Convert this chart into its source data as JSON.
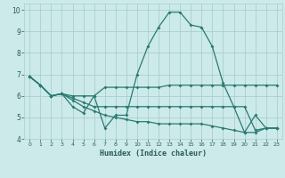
{
  "xlabel": "Humidex (Indice chaleur)",
  "background_color": "#cceaea",
  "grid_color": "#aacece",
  "line_color": "#2a7a70",
  "xlim": [
    -0.5,
    23.5
  ],
  "ylim": [
    4,
    10.3
  ],
  "yticks": [
    4,
    5,
    6,
    7,
    8,
    9,
    10
  ],
  "xticks": [
    0,
    1,
    2,
    3,
    4,
    5,
    6,
    7,
    8,
    9,
    10,
    11,
    12,
    13,
    14,
    15,
    16,
    17,
    18,
    19,
    20,
    21,
    22,
    23
  ],
  "line1_x": [
    0,
    1,
    2,
    3,
    4,
    5,
    6,
    7,
    8,
    9,
    10,
    11,
    12,
    13,
    14,
    15,
    16,
    17,
    18,
    19,
    20,
    21,
    22,
    23
  ],
  "line1_y": [
    6.9,
    6.5,
    6.0,
    6.1,
    5.5,
    5.2,
    6.0,
    4.5,
    5.1,
    5.1,
    7.0,
    8.3,
    9.2,
    9.9,
    9.9,
    9.3,
    9.2,
    8.3,
    6.6,
    5.5,
    4.3,
    5.1,
    4.5,
    4.5
  ],
  "line2_x": [
    0,
    1,
    2,
    3,
    4,
    5,
    6,
    7,
    8,
    9,
    10,
    11,
    12,
    13,
    14,
    15,
    16,
    17,
    18,
    19,
    20,
    21,
    22,
    23
  ],
  "line2_y": [
    6.9,
    6.5,
    6.0,
    6.1,
    6.0,
    6.0,
    6.0,
    6.4,
    6.4,
    6.4,
    6.4,
    6.4,
    6.4,
    6.5,
    6.5,
    6.5,
    6.5,
    6.5,
    6.5,
    6.5,
    6.5,
    6.5,
    6.5,
    6.5
  ],
  "line3_x": [
    0,
    1,
    2,
    3,
    4,
    5,
    6,
    7,
    8,
    9,
    10,
    11,
    12,
    13,
    14,
    15,
    16,
    17,
    18,
    19,
    20,
    21,
    22,
    23
  ],
  "line3_y": [
    6.9,
    6.5,
    6.0,
    6.1,
    5.9,
    5.7,
    5.5,
    5.5,
    5.5,
    5.5,
    5.5,
    5.5,
    5.5,
    5.5,
    5.5,
    5.5,
    5.5,
    5.5,
    5.5,
    5.5,
    5.5,
    4.4,
    4.5,
    4.5
  ],
  "line4_x": [
    0,
    1,
    2,
    3,
    4,
    5,
    6,
    7,
    8,
    9,
    10,
    11,
    12,
    13,
    14,
    15,
    16,
    17,
    18,
    19,
    20,
    21,
    22,
    23
  ],
  "line4_y": [
    6.9,
    6.5,
    6.0,
    6.1,
    5.8,
    5.5,
    5.3,
    5.1,
    5.0,
    4.9,
    4.8,
    4.8,
    4.7,
    4.7,
    4.7,
    4.7,
    4.7,
    4.6,
    4.5,
    4.4,
    4.3,
    4.3,
    4.5,
    4.5
  ]
}
